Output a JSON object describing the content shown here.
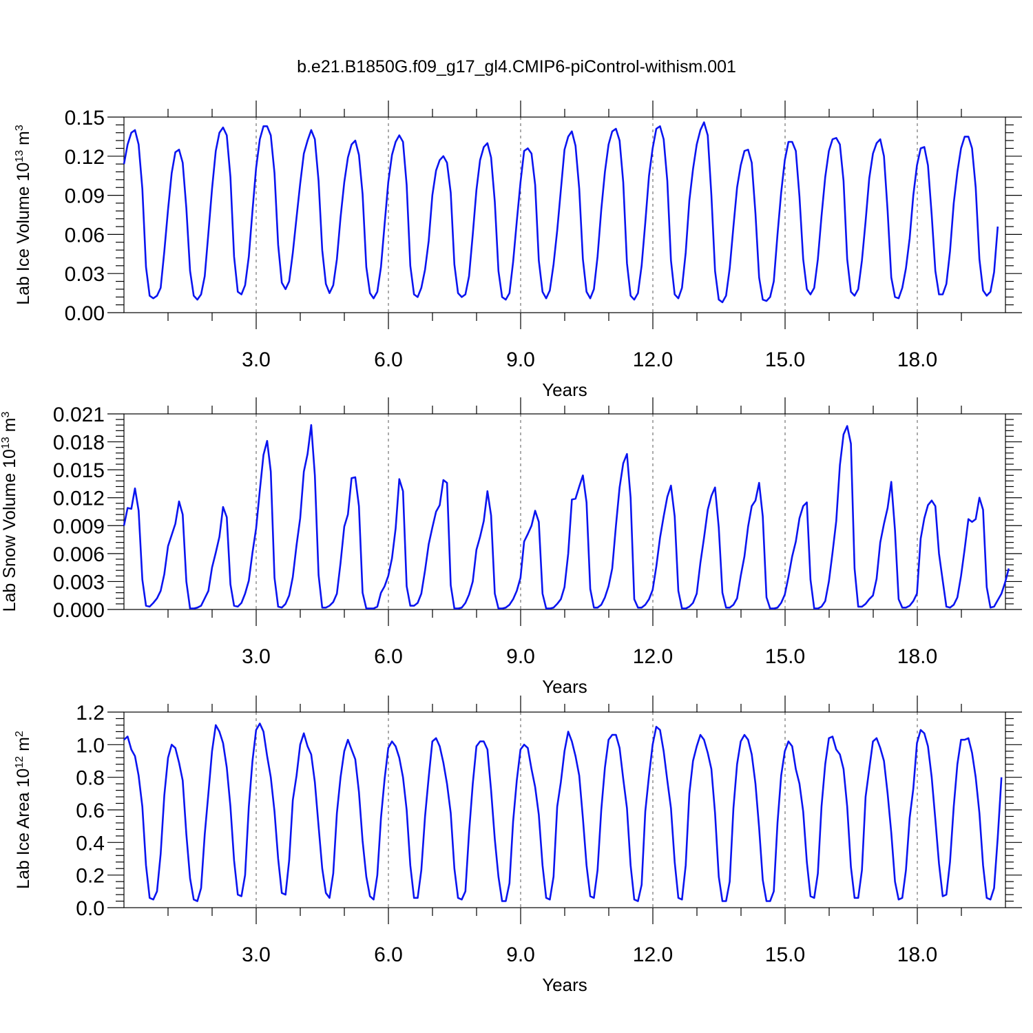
{
  "title": "b.e21.B1850G.f09_g17_gl4.CMIP6-piControl-withism.001",
  "colors": {
    "series": "#0a14f0",
    "axis": "#000000",
    "grid": "#555555"
  },
  "chart_data": [
    {
      "type": "line",
      "ylabel": {
        "main": "Lab Ice Volume 10",
        "exp": "13",
        "unit": " m",
        "unit_exp": "3"
      },
      "xlabel": "Years",
      "xlim": [
        0,
        20.0
      ],
      "ylim": [
        0,
        0.15
      ],
      "xticks": [
        3,
        6,
        9,
        12,
        15,
        18
      ],
      "xtick_labels": [
        "3.0",
        "6.0",
        "9.0",
        "12.0",
        "15.0",
        "18.0"
      ],
      "yticks": [
        0,
        0.03,
        0.06,
        0.09,
        0.12,
        0.15
      ],
      "ytick_labels": [
        "0.00",
        "0.03",
        "0.06",
        "0.09",
        "0.12",
        "0.15"
      ],
      "grid": "dashed vertical lines at x ticks",
      "x_step_years": 0.0833,
      "series": [
        {
          "values": [
            0.114,
            0.129,
            0.138,
            0.14,
            0.129,
            0.095,
            0.035,
            0.013,
            0.011,
            0.013,
            0.019,
            0.047,
            0.079,
            0.107,
            0.123,
            0.125,
            0.115,
            0.08,
            0.032,
            0.013,
            0.01,
            0.014,
            0.028,
            0.061,
            0.095,
            0.124,
            0.138,
            0.142,
            0.136,
            0.104,
            0.043,
            0.016,
            0.014,
            0.021,
            0.043,
            0.078,
            0.111,
            0.133,
            0.143,
            0.143,
            0.136,
            0.107,
            0.052,
            0.023,
            0.018,
            0.024,
            0.046,
            0.073,
            0.099,
            0.122,
            0.132,
            0.14,
            0.133,
            0.101,
            0.048,
            0.022,
            0.015,
            0.021,
            0.041,
            0.073,
            0.1,
            0.119,
            0.129,
            0.132,
            0.121,
            0.091,
            0.035,
            0.015,
            0.011,
            0.016,
            0.035,
            0.068,
            0.1,
            0.121,
            0.131,
            0.136,
            0.131,
            0.098,
            0.036,
            0.014,
            0.012,
            0.019,
            0.033,
            0.055,
            0.09,
            0.109,
            0.117,
            0.12,
            0.115,
            0.092,
            0.037,
            0.015,
            0.012,
            0.014,
            0.028,
            0.06,
            0.094,
            0.117,
            0.127,
            0.13,
            0.119,
            0.085,
            0.032,
            0.012,
            0.01,
            0.015,
            0.039,
            0.07,
            0.1,
            0.124,
            0.126,
            0.122,
            0.098,
            0.04,
            0.016,
            0.011,
            0.017,
            0.037,
            0.063,
            0.094,
            0.125,
            0.135,
            0.139,
            0.128,
            0.095,
            0.041,
            0.016,
            0.011,
            0.018,
            0.043,
            0.079,
            0.108,
            0.129,
            0.139,
            0.141,
            0.132,
            0.1,
            0.038,
            0.013,
            0.01,
            0.015,
            0.036,
            0.069,
            0.105,
            0.126,
            0.141,
            0.143,
            0.133,
            0.101,
            0.04,
            0.014,
            0.011,
            0.019,
            0.046,
            0.086,
            0.11,
            0.129,
            0.14,
            0.146,
            0.136,
            0.09,
            0.032,
            0.01,
            0.008,
            0.013,
            0.034,
            0.066,
            0.096,
            0.113,
            0.124,
            0.125,
            0.115,
            0.076,
            0.027,
            0.01,
            0.009,
            0.012,
            0.024,
            0.06,
            0.092,
            0.117,
            0.131,
            0.131,
            0.124,
            0.089,
            0.041,
            0.018,
            0.014,
            0.019,
            0.041,
            0.074,
            0.104,
            0.124,
            0.133,
            0.134,
            0.129,
            0.101,
            0.041,
            0.016,
            0.013,
            0.018,
            0.04,
            0.07,
            0.103,
            0.122,
            0.13,
            0.133,
            0.12,
            0.078,
            0.027,
            0.012,
            0.011,
            0.019,
            0.034,
            0.057,
            0.09,
            0.113,
            0.126,
            0.127,
            0.113,
            0.075,
            0.032,
            0.014,
            0.014,
            0.022,
            0.047,
            0.084,
            0.108,
            0.126,
            0.135,
            0.135,
            0.126,
            0.096,
            0.041,
            0.017,
            0.013,
            0.016,
            0.031,
            0.066
          ]
        }
      ]
    },
    {
      "type": "line",
      "ylabel": {
        "main": "Lab Snow Volume 10",
        "exp": "13",
        "unit": " m",
        "unit_exp": "3"
      },
      "xlabel": "Years",
      "xlim": [
        0,
        20.0
      ],
      "ylim": [
        0,
        0.021
      ],
      "xticks": [
        3,
        6,
        9,
        12,
        15,
        18
      ],
      "xtick_labels": [
        "3.0",
        "6.0",
        "9.0",
        "12.0",
        "15.0",
        "18.0"
      ],
      "yticks": [
        0,
        0.003,
        0.006,
        0.009,
        0.012,
        0.015,
        0.018,
        0.021
      ],
      "ytick_labels": [
        "0.000",
        "0.003",
        "0.006",
        "0.009",
        "0.012",
        "0.015",
        "0.018",
        "0.021"
      ],
      "grid": "dashed vertical lines at x ticks",
      "x_step_years": 0.0833,
      "series": [
        {
          "values": [
            0.009,
            0.0109,
            0.0108,
            0.013,
            0.0106,
            0.0032,
            0.0004,
            0.0003,
            0.0007,
            0.0012,
            0.002,
            0.0038,
            0.0068,
            0.008,
            0.0092,
            0.0116,
            0.0102,
            0.003,
            0.0001,
            0.0001,
            0.0002,
            0.0004,
            0.0012,
            0.002,
            0.0045,
            0.0061,
            0.0078,
            0.011,
            0.0099,
            0.0027,
            0.0004,
            0.0003,
            0.0007,
            0.0017,
            0.0031,
            0.0061,
            0.0087,
            0.0128,
            0.0166,
            0.0181,
            0.0148,
            0.0034,
            0.0003,
            0.0002,
            0.0006,
            0.0015,
            0.0035,
            0.0069,
            0.0098,
            0.0148,
            0.0167,
            0.0198,
            0.0144,
            0.0037,
            0.0002,
            0.0002,
            0.0004,
            0.0008,
            0.0017,
            0.005,
            0.0089,
            0.0102,
            0.0141,
            0.0142,
            0.0111,
            0.0018,
            0.0001,
            0.0001,
            0.0001,
            0.0003,
            0.0018,
            0.0025,
            0.0036,
            0.0055,
            0.0087,
            0.014,
            0.0127,
            0.0025,
            0.0004,
            0.0004,
            0.0007,
            0.0017,
            0.0042,
            0.007,
            0.0088,
            0.0105,
            0.0112,
            0.0139,
            0.0136,
            0.0026,
            0.0001,
            0.0001,
            0.0002,
            0.0007,
            0.0016,
            0.003,
            0.0064,
            0.0078,
            0.0095,
            0.0127,
            0.0101,
            0.0017,
            0.0001,
            0.0001,
            0.0002,
            0.0005,
            0.0011,
            0.002,
            0.0034,
            0.0073,
            0.0081,
            0.009,
            0.0106,
            0.0094,
            0.0017,
            0.0001,
            0.0001,
            0.0002,
            0.0006,
            0.0011,
            0.0024,
            0.006,
            0.0118,
            0.0119,
            0.0132,
            0.0144,
            0.0115,
            0.0022,
            0.0002,
            0.0002,
            0.0005,
            0.0013,
            0.0025,
            0.0044,
            0.009,
            0.0131,
            0.0157,
            0.0167,
            0.012,
            0.0011,
            0.0002,
            0.0002,
            0.0005,
            0.0011,
            0.0021,
            0.0046,
            0.0077,
            0.01,
            0.0121,
            0.0133,
            0.01,
            0.002,
            0.0001,
            0.0001,
            0.0003,
            0.0007,
            0.0017,
            0.005,
            0.0077,
            0.0107,
            0.0122,
            0.0131,
            0.0088,
            0.0018,
            0.0002,
            0.0002,
            0.0005,
            0.0012,
            0.0036,
            0.0057,
            0.0089,
            0.0111,
            0.0117,
            0.0136,
            0.01,
            0.0013,
            0.0001,
            0.0001,
            0.0002,
            0.0007,
            0.0016,
            0.0035,
            0.0057,
            0.0073,
            0.0098,
            0.0111,
            0.0115,
            0.0032,
            0.0001,
            0.0001,
            0.0003,
            0.0009,
            0.003,
            0.0061,
            0.0095,
            0.0155,
            0.0188,
            0.0197,
            0.0178,
            0.0044,
            0.0003,
            0.0003,
            0.0006,
            0.0011,
            0.0015,
            0.0033,
            0.0072,
            0.0092,
            0.0109,
            0.0137,
            0.0085,
            0.0011,
            0.0002,
            0.0002,
            0.0004,
            0.0009,
            0.0017,
            0.0076,
            0.0098,
            0.0112,
            0.0117,
            0.0111,
            0.006,
            0.0031,
            0.0003,
            0.0002,
            0.0005,
            0.0013,
            0.0036,
            0.0065,
            0.0097,
            0.0094,
            0.0097,
            0.012,
            0.0107,
            0.0024,
            0.0002,
            0.0003,
            0.001,
            0.0017,
            0.0029,
            0.0044
          ]
        }
      ]
    },
    {
      "type": "line",
      "ylabel": {
        "main": "Lab Ice Area 10",
        "exp": "12",
        "unit": " m",
        "unit_exp": "2"
      },
      "xlabel": "Years",
      "xlim": [
        0,
        20.0
      ],
      "ylim": [
        0,
        1.2
      ],
      "xticks": [
        3,
        6,
        9,
        12,
        15,
        18
      ],
      "xtick_labels": [
        "3.0",
        "6.0",
        "9.0",
        "12.0",
        "15.0",
        "18.0"
      ],
      "yticks": [
        0,
        0.2,
        0.4,
        0.6,
        0.8,
        1.0,
        1.2
      ],
      "ytick_labels": [
        "0.0",
        "0.2",
        "0.4",
        "0.6",
        "0.8",
        "1.0",
        "1.2"
      ],
      "grid": "dashed vertical lines at x ticks",
      "x_step_years": 0.0833,
      "series": [
        {
          "values": [
            1.03,
            1.05,
            0.97,
            0.93,
            0.81,
            0.62,
            0.26,
            0.06,
            0.05,
            0.1,
            0.33,
            0.69,
            0.92,
            1.0,
            0.98,
            0.89,
            0.78,
            0.45,
            0.18,
            0.05,
            0.04,
            0.12,
            0.45,
            0.7,
            0.96,
            1.12,
            1.08,
            1.01,
            0.86,
            0.62,
            0.29,
            0.08,
            0.07,
            0.2,
            0.62,
            0.9,
            1.09,
            1.13,
            1.08,
            0.93,
            0.8,
            0.59,
            0.3,
            0.09,
            0.08,
            0.29,
            0.66,
            0.81,
            1.0,
            1.07,
            0.99,
            0.94,
            0.77,
            0.5,
            0.24,
            0.09,
            0.06,
            0.21,
            0.58,
            0.8,
            0.96,
            1.03,
            0.97,
            0.91,
            0.71,
            0.41,
            0.19,
            0.07,
            0.05,
            0.2,
            0.55,
            0.79,
            0.98,
            1.02,
            0.99,
            0.92,
            0.8,
            0.6,
            0.26,
            0.06,
            0.06,
            0.23,
            0.56,
            0.8,
            1.02,
            1.04,
            0.99,
            0.89,
            0.76,
            0.58,
            0.24,
            0.06,
            0.05,
            0.1,
            0.46,
            0.76,
            0.99,
            1.02,
            1.02,
            0.97,
            0.72,
            0.42,
            0.19,
            0.04,
            0.04,
            0.15,
            0.53,
            0.78,
            0.97,
            1.0,
            0.98,
            0.85,
            0.74,
            0.57,
            0.26,
            0.06,
            0.05,
            0.19,
            0.62,
            0.77,
            0.96,
            1.08,
            1.02,
            0.93,
            0.81,
            0.55,
            0.26,
            0.07,
            0.06,
            0.23,
            0.6,
            0.86,
            1.03,
            1.06,
            1.06,
            0.98,
            0.79,
            0.61,
            0.26,
            0.05,
            0.04,
            0.14,
            0.59,
            0.81,
            1.0,
            1.11,
            1.09,
            0.96,
            0.78,
            0.61,
            0.28,
            0.06,
            0.05,
            0.26,
            0.7,
            0.9,
            0.99,
            1.06,
            1.03,
            0.95,
            0.85,
            0.58,
            0.19,
            0.04,
            0.04,
            0.16,
            0.61,
            0.88,
            1.02,
            1.06,
            1.03,
            0.94,
            0.76,
            0.49,
            0.17,
            0.04,
            0.04,
            0.1,
            0.52,
            0.81,
            0.96,
            1.02,
            0.99,
            0.85,
            0.76,
            0.59,
            0.28,
            0.07,
            0.06,
            0.21,
            0.62,
            0.88,
            1.04,
            1.05,
            0.97,
            0.94,
            0.85,
            0.62,
            0.25,
            0.06,
            0.06,
            0.23,
            0.68,
            0.85,
            1.02,
            1.04,
            0.98,
            0.9,
            0.7,
            0.46,
            0.16,
            0.05,
            0.06,
            0.23,
            0.55,
            0.73,
            1.01,
            1.09,
            1.07,
            0.99,
            0.8,
            0.54,
            0.27,
            0.07,
            0.08,
            0.28,
            0.62,
            0.88,
            1.03,
            1.03,
            1.04,
            0.95,
            0.8,
            0.58,
            0.26,
            0.06,
            0.05,
            0.12,
            0.43,
            0.8
          ]
        }
      ]
    }
  ]
}
